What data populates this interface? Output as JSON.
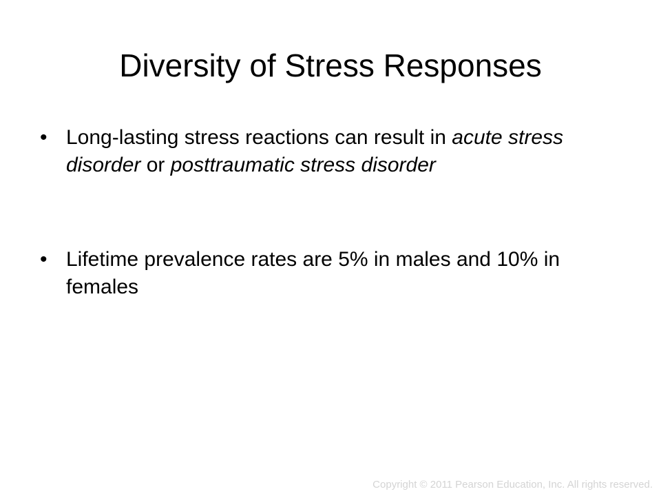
{
  "slide": {
    "title": "Diversity of Stress Responses",
    "bullet_symbol": "•",
    "bullets": [
      {
        "segments": [
          {
            "text": "Long-lasting stress reactions can result in ",
            "italic": false
          },
          {
            "text": "acute stress disorder",
            "italic": true
          },
          {
            "text": " or ",
            "italic": false
          },
          {
            "text": "posttraumatic stress disorder",
            "italic": true
          }
        ]
      },
      {
        "segments": [
          {
            "text": "Lifetime prevalence rates are 5% in males and 10% in females",
            "italic": false
          }
        ]
      }
    ],
    "copyright": "Copyright © 2011 Pearson Education, Inc. All rights reserved."
  }
}
